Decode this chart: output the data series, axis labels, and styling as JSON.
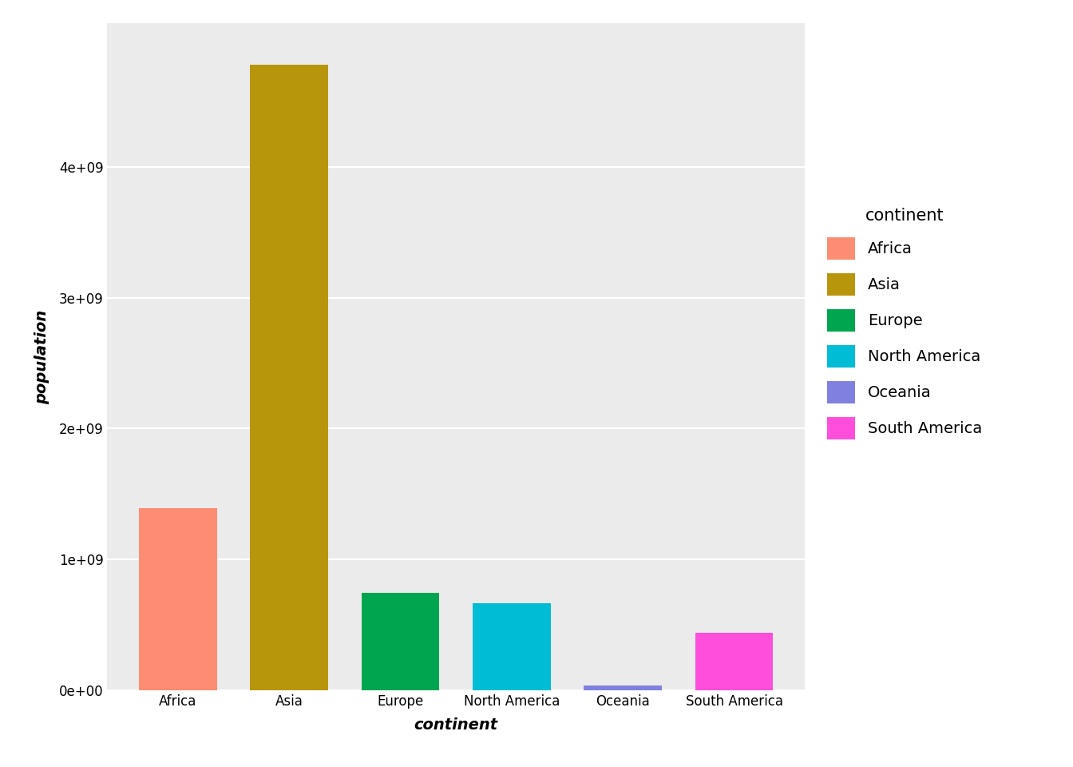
{
  "categories": [
    "Africa",
    "Asia",
    "Europe",
    "North America",
    "Oceania",
    "South America"
  ],
  "values": [
    1395000000.0,
    4780000000.0,
    745000000.0,
    665000000.0,
    35000000.0,
    440000000.0
  ],
  "bar_colors": [
    "#FC8D72",
    "#B8960C",
    "#00A550",
    "#00BCD4",
    "#8080E0",
    "#FF4EDB"
  ],
  "xlabel": "continent",
  "ylabel": "population",
  "legend_title": "continent",
  "legend_labels": [
    "Africa",
    "Asia",
    "Europe",
    "North America",
    "Oceania",
    "South America"
  ],
  "legend_colors": [
    "#FC8D72",
    "#B8960C",
    "#00A550",
    "#00BCD4",
    "#8080E0",
    "#FF4EDB"
  ],
  "figure_background": "#FFFFFF",
  "panel_background": "#EBEBEB",
  "grid_color": "#FFFFFF",
  "yticks": [
    0,
    1000000000.0,
    2000000000.0,
    3000000000.0,
    4000000000.0
  ],
  "ylim": [
    0,
    5100000000.0
  ],
  "axis_label_fontsize": 14,
  "tick_fontsize": 12,
  "legend_fontsize": 14,
  "legend_title_fontsize": 15
}
